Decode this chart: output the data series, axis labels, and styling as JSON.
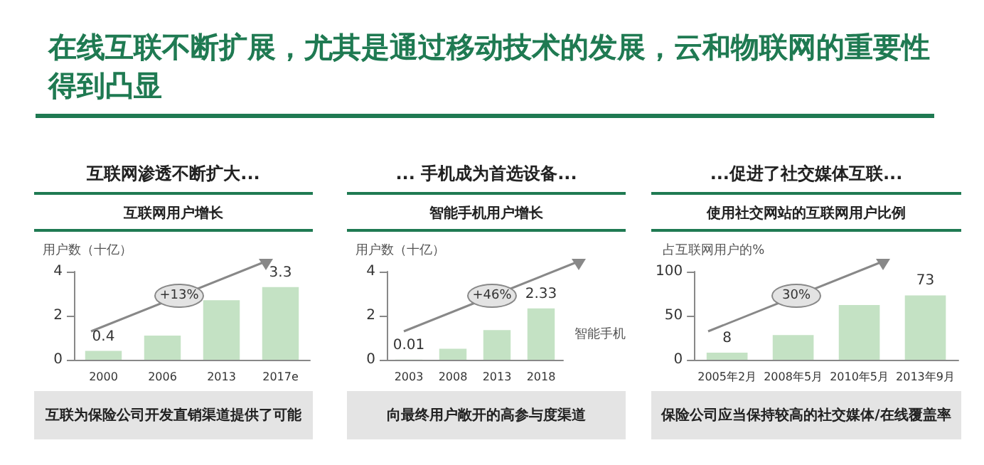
{
  "chart_data": [
    {
      "type": "bar",
      "title": "互联网渗透不断扩大...",
      "subtitle": "互联网用户增长",
      "ylabel": "用户数（十亿）",
      "annotations": [
        "在线互联不断扩展，尤其是通过移动技术的发展，云和物联网的重要性得到凸显",
        "+13%",
        "互联为保险公司开发直销渠道提供了可能"
      ],
      "categories": [
        "2000",
        "2006",
        "2013",
        "2017e"
      ],
      "values": [
        0.4,
        1.1,
        2.7,
        3.3
      ],
      "value_labels": [
        "0.4",
        null,
        null,
        "3.3"
      ],
      "color": "#c4e2c4",
      "ylim": [
        0,
        4
      ],
      "yticks": [
        0,
        2,
        4
      ],
      "grid": false,
      "legend": false
    },
    {
      "type": "bar",
      "title": "... 手机成为首选设备...",
      "subtitle": "智能手机用户增长",
      "ylabel": "用户数（十亿）",
      "annotations": [
        "+46%",
        "向最终用户敞开的高参与度渠道"
      ],
      "categories": [
        "2003",
        "2008",
        "2013",
        "2018"
      ],
      "series": [
        {
          "name": "智能手机",
          "color": "#c4e2c4",
          "values": [
            0.01,
            0.5,
            1.35,
            2.33
          ],
          "value_labels": [
            "0.01",
            null,
            null,
            "2.33"
          ]
        }
      ],
      "ylim": [
        0,
        4
      ],
      "yticks": [
        0,
        2,
        4
      ],
      "grid": false,
      "legend": false
    },
    {
      "type": "bar",
      "title": "...促进了社交媒体互联...",
      "subtitle": "使用社交网站的互联网用户比例",
      "ylabel": "占互联网用户的%",
      "annotations": [
        "30%",
        "保险公司应当保持较高的社交媒体/在线覆盖率"
      ],
      "categories": [
        "2005年2月",
        "2008年5月",
        "2010年5月",
        "2013年9月"
      ],
      "values": [
        8,
        28,
        62,
        73
      ],
      "value_labels": [
        "8",
        null,
        null,
        "73"
      ],
      "color": "#c4e2c4",
      "ylim": [
        0,
        100
      ],
      "yticks": [
        0,
        50,
        100
      ],
      "grid": false,
      "legend": false
    }
  ]
}
